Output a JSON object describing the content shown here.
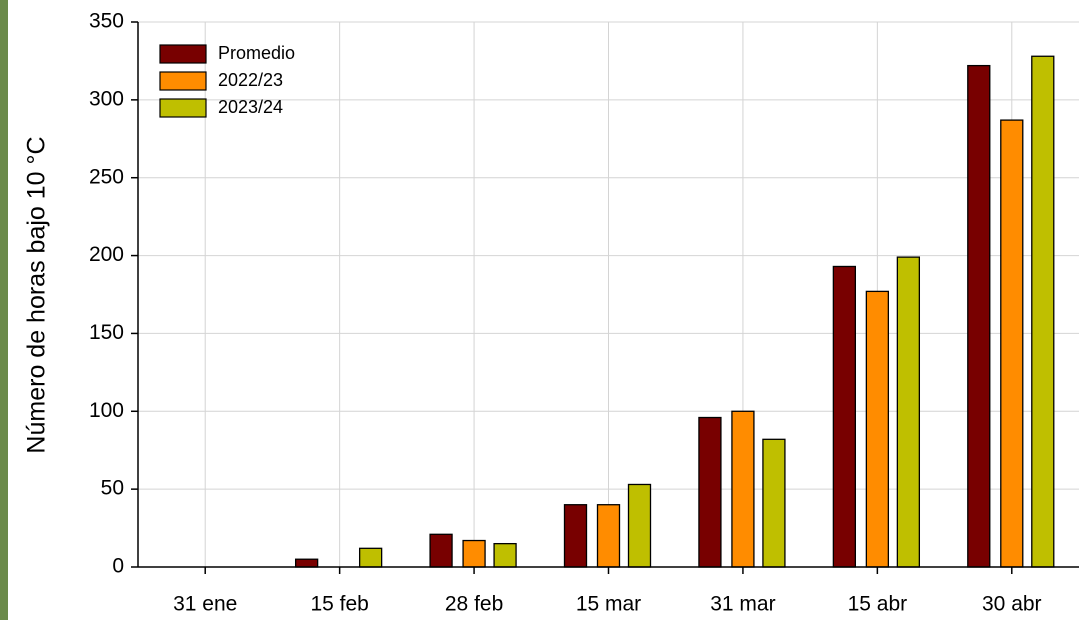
{
  "chart_data": {
    "type": "bar",
    "y_label": "Número de horas bajo 10 °C",
    "categories": [
      "31 ene",
      "15 feb",
      "28 feb",
      "15 mar",
      "31 mar",
      "15 abr",
      "30 abr"
    ],
    "series": [
      {
        "name": "Promedio",
        "color": "#780000",
        "values": [
          0,
          5,
          21,
          40,
          96,
          193,
          322
        ]
      },
      {
        "name": "2022/23",
        "color": "#ff8c00",
        "values": [
          0,
          0,
          17,
          40,
          100,
          177,
          287
        ]
      },
      {
        "name": "2023/24",
        "color": "#bfbf00",
        "values": [
          0,
          12,
          15,
          53,
          82,
          199,
          328
        ]
      }
    ],
    "ylim": [
      0,
      350
    ],
    "yticks": [
      0,
      50,
      100,
      150,
      200,
      250,
      300,
      350
    ],
    "grid": true,
    "legend": "upper-left"
  }
}
